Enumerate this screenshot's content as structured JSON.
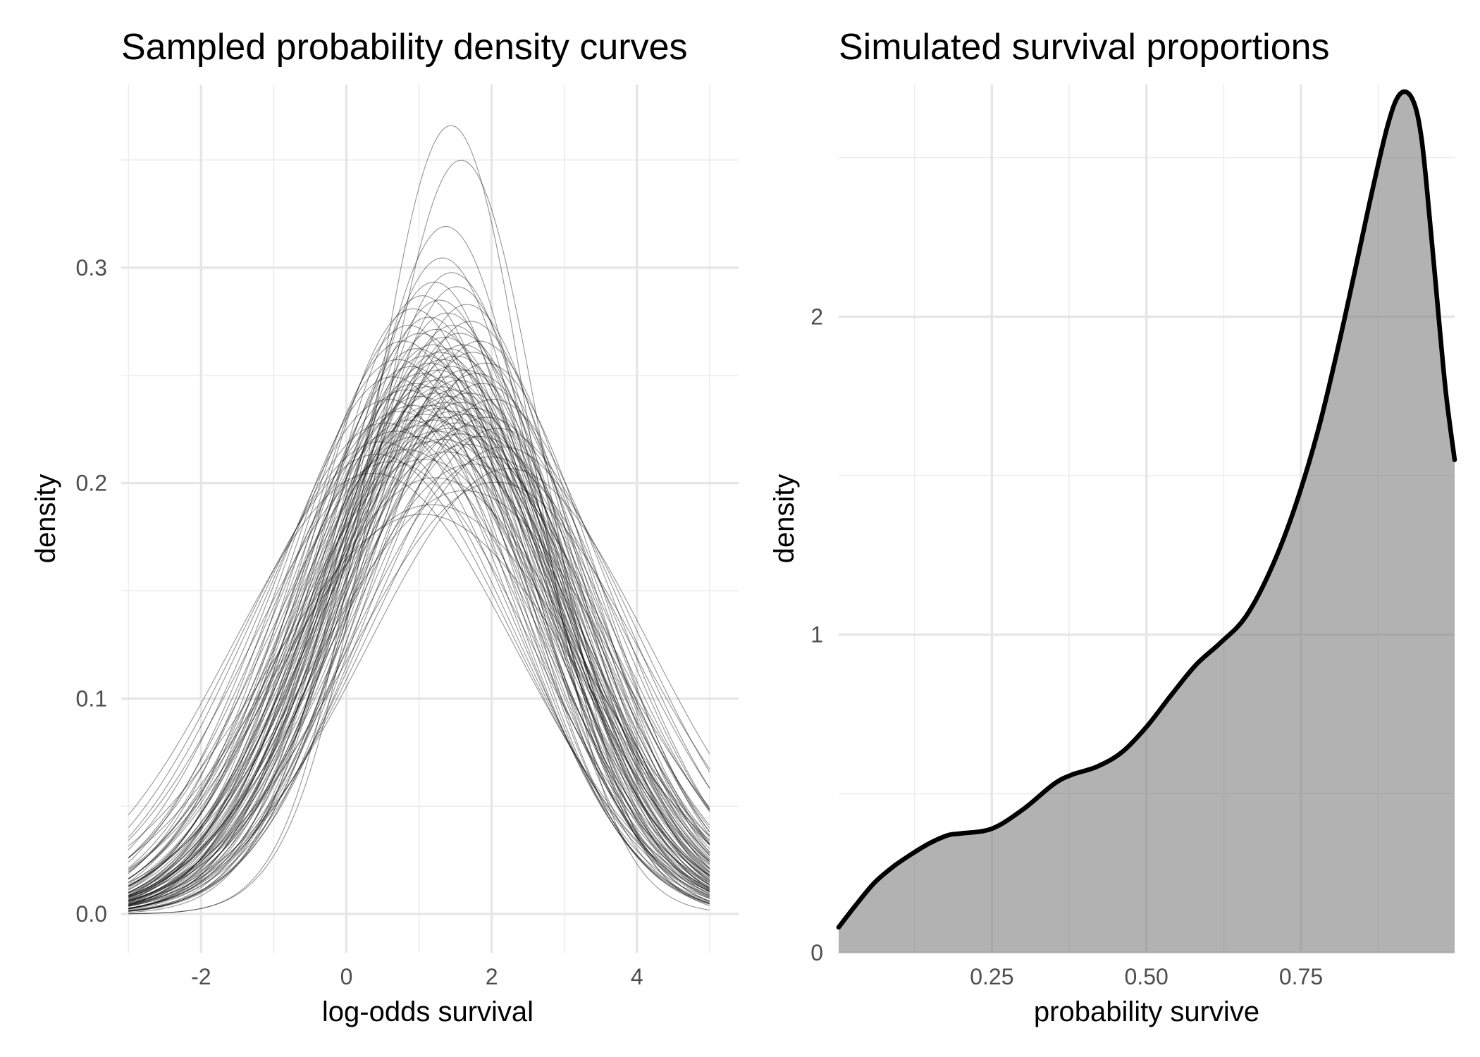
{
  "chart_data": [
    {
      "type": "line",
      "title": "Sampled probability density curves",
      "xlabel": "log-odds survival",
      "ylabel": "density",
      "xlim": [
        -3.1,
        5.4
      ],
      "ylim": [
        -0.018,
        0.385
      ],
      "x_range_plotted": [
        -3,
        5
      ],
      "x_ticks": [
        -2,
        0,
        2,
        4
      ],
      "x_tick_labels": [
        "-2",
        "0",
        "2",
        "4"
      ],
      "y_ticks": [
        0.0,
        0.1,
        0.2,
        0.3
      ],
      "y_tick_labels": [
        "0.0",
        "0.1",
        "0.2",
        "0.3"
      ],
      "grid": true,
      "legend": "none",
      "line_color": "#000000",
      "note_series": "100 sampled normal density curves, each defined by mean and sd",
      "series": [
        {
          "mean": 1.44,
          "sd": 1.09
        },
        {
          "mean": 1.58,
          "sd": 1.14
        },
        {
          "mean": 1.37,
          "sd": 1.25
        },
        {
          "mean": 1.32,
          "sd": 1.31
        },
        {
          "mean": 1.45,
          "sd": 1.34
        },
        {
          "mean": 1.21,
          "sd": 1.36
        },
        {
          "mean": 1.52,
          "sd": 1.37
        },
        {
          "mean": 1.05,
          "sd": 1.39
        },
        {
          "mean": 1.28,
          "sd": 1.4
        },
        {
          "mean": 1.66,
          "sd": 1.41
        },
        {
          "mean": 0.92,
          "sd": 1.42
        },
        {
          "mean": 1.39,
          "sd": 1.43
        },
        {
          "mean": 1.14,
          "sd": 1.44
        },
        {
          "mean": 1.71,
          "sd": 1.45
        },
        {
          "mean": 1.47,
          "sd": 1.46
        },
        {
          "mean": 0.86,
          "sd": 1.46
        },
        {
          "mean": 1.24,
          "sd": 1.47
        },
        {
          "mean": 1.56,
          "sd": 1.48
        },
        {
          "mean": 1.02,
          "sd": 1.48
        },
        {
          "mean": 1.35,
          "sd": 1.49
        },
        {
          "mean": 1.83,
          "sd": 1.5
        },
        {
          "mean": 0.78,
          "sd": 1.5
        },
        {
          "mean": 1.19,
          "sd": 1.51
        },
        {
          "mean": 1.61,
          "sd": 1.51
        },
        {
          "mean": 1.41,
          "sd": 1.52
        },
        {
          "mean": 0.97,
          "sd": 1.52
        },
        {
          "mean": 1.29,
          "sd": 1.53
        },
        {
          "mean": 1.74,
          "sd": 1.53
        },
        {
          "mean": 1.09,
          "sd": 1.54
        },
        {
          "mean": 1.51,
          "sd": 1.54
        },
        {
          "mean": 0.71,
          "sd": 1.55
        },
        {
          "mean": 1.33,
          "sd": 1.55
        },
        {
          "mean": 1.92,
          "sd": 1.56
        },
        {
          "mean": 1.16,
          "sd": 1.56
        },
        {
          "mean": 1.44,
          "sd": 1.57
        },
        {
          "mean": 0.89,
          "sd": 1.57
        },
        {
          "mean": 1.63,
          "sd": 1.58
        },
        {
          "mean": 1.26,
          "sd": 1.58
        },
        {
          "mean": 1.04,
          "sd": 1.59
        },
        {
          "mean": 1.79,
          "sd": 1.59
        },
        {
          "mean": 1.38,
          "sd": 1.6
        },
        {
          "mean": 0.64,
          "sd": 1.6
        },
        {
          "mean": 1.21,
          "sd": 1.61
        },
        {
          "mean": 1.55,
          "sd": 1.61
        },
        {
          "mean": 0.95,
          "sd": 1.62
        },
        {
          "mean": 1.87,
          "sd": 1.62
        },
        {
          "mean": 1.31,
          "sd": 1.63
        },
        {
          "mean": 1.12,
          "sd": 1.63
        },
        {
          "mean": 1.48,
          "sd": 1.64
        },
        {
          "mean": 0.82,
          "sd": 1.64
        },
        {
          "mean": 1.69,
          "sd": 1.65
        },
        {
          "mean": 1.23,
          "sd": 1.65
        },
        {
          "mean": 1.42,
          "sd": 1.66
        },
        {
          "mean": 1.01,
          "sd": 1.66
        },
        {
          "mean": 2.02,
          "sd": 1.67
        },
        {
          "mean": 0.58,
          "sd": 1.67
        },
        {
          "mean": 1.35,
          "sd": 1.68
        },
        {
          "mean": 1.59,
          "sd": 1.68
        },
        {
          "mean": 1.17,
          "sd": 1.69
        },
        {
          "mean": 0.91,
          "sd": 1.69
        },
        {
          "mean": 1.76,
          "sd": 1.7
        },
        {
          "mean": 1.27,
          "sd": 1.7
        },
        {
          "mean": 1.46,
          "sd": 1.71
        },
        {
          "mean": 0.74,
          "sd": 1.71
        },
        {
          "mean": 1.08,
          "sd": 1.72
        },
        {
          "mean": 1.62,
          "sd": 1.72
        },
        {
          "mean": 1.94,
          "sd": 1.73
        },
        {
          "mean": 1.36,
          "sd": 1.73
        },
        {
          "mean": 0.87,
          "sd": 1.74
        },
        {
          "mean": 1.19,
          "sd": 1.74
        },
        {
          "mean": 1.53,
          "sd": 1.75
        },
        {
          "mean": 0.53,
          "sd": 1.75
        },
        {
          "mean": 1.72,
          "sd": 1.76
        },
        {
          "mean": 1.03,
          "sd": 1.76
        },
        {
          "mean": 1.41,
          "sd": 1.77
        },
        {
          "mean": 2.09,
          "sd": 1.77
        },
        {
          "mean": 1.25,
          "sd": 1.78
        },
        {
          "mean": 0.69,
          "sd": 1.78
        },
        {
          "mean": 1.57,
          "sd": 1.79
        },
        {
          "mean": 0.96,
          "sd": 1.8
        },
        {
          "mean": 1.84,
          "sd": 1.8
        },
        {
          "mean": 1.32,
          "sd": 1.81
        },
        {
          "mean": 0.47,
          "sd": 1.82
        },
        {
          "mean": 1.14,
          "sd": 1.82
        },
        {
          "mean": 1.66,
          "sd": 1.83
        },
        {
          "mean": 2.16,
          "sd": 1.84
        },
        {
          "mean": 0.81,
          "sd": 1.85
        },
        {
          "mean": 1.39,
          "sd": 1.86
        },
        {
          "mean": 0.42,
          "sd": 1.87
        },
        {
          "mean": 1.98,
          "sd": 1.88
        },
        {
          "mean": 1.07,
          "sd": 1.89
        },
        {
          "mean": 0.62,
          "sd": 1.9
        },
        {
          "mean": 1.73,
          "sd": 1.91
        },
        {
          "mean": 2.24,
          "sd": 1.93
        },
        {
          "mean": 0.37,
          "sd": 1.95
        },
        {
          "mean": 1.22,
          "sd": 1.97
        },
        {
          "mean": 2.06,
          "sd": 1.99
        },
        {
          "mean": 1.18,
          "sd": 2.1
        },
        {
          "mean": 1.05,
          "sd": 2.15
        },
        {
          "mean": 1.63,
          "sd": 2.03
        }
      ]
    },
    {
      "type": "area",
      "title": "Simulated survival proportions",
      "xlabel": "probability survive",
      "ylabel": "density",
      "xlim": [
        0.0022,
        0.9985
      ],
      "ylim": [
        0.0,
        2.73
      ],
      "x_ticks": [
        0.25,
        0.5,
        0.75
      ],
      "x_tick_labels": [
        "0.25",
        "0.50",
        "0.75"
      ],
      "y_ticks": [
        0,
        1,
        2
      ],
      "y_tick_labels": [
        "0",
        "1",
        "2"
      ],
      "grid": true,
      "legend": "none",
      "fill_color": "#b3b3b3",
      "line_color": "#000000",
      "x": [
        0.0022,
        0.03,
        0.06,
        0.09,
        0.12,
        0.15,
        0.18,
        0.2,
        0.25,
        0.3,
        0.35,
        0.38,
        0.42,
        0.46,
        0.5,
        0.54,
        0.58,
        0.62,
        0.66,
        0.7,
        0.74,
        0.78,
        0.82,
        0.86,
        0.89,
        0.91,
        0.93,
        0.945,
        0.96,
        0.975,
        0.985,
        0.9985
      ],
      "y": [
        0.08,
        0.15,
        0.22,
        0.27,
        0.31,
        0.345,
        0.37,
        0.375,
        0.39,
        0.45,
        0.53,
        0.56,
        0.585,
        0.63,
        0.71,
        0.81,
        0.905,
        0.975,
        1.055,
        1.2,
        1.4,
        1.66,
        1.99,
        2.35,
        2.6,
        2.7,
        2.685,
        2.56,
        2.27,
        1.95,
        1.75,
        1.55
      ]
    }
  ]
}
